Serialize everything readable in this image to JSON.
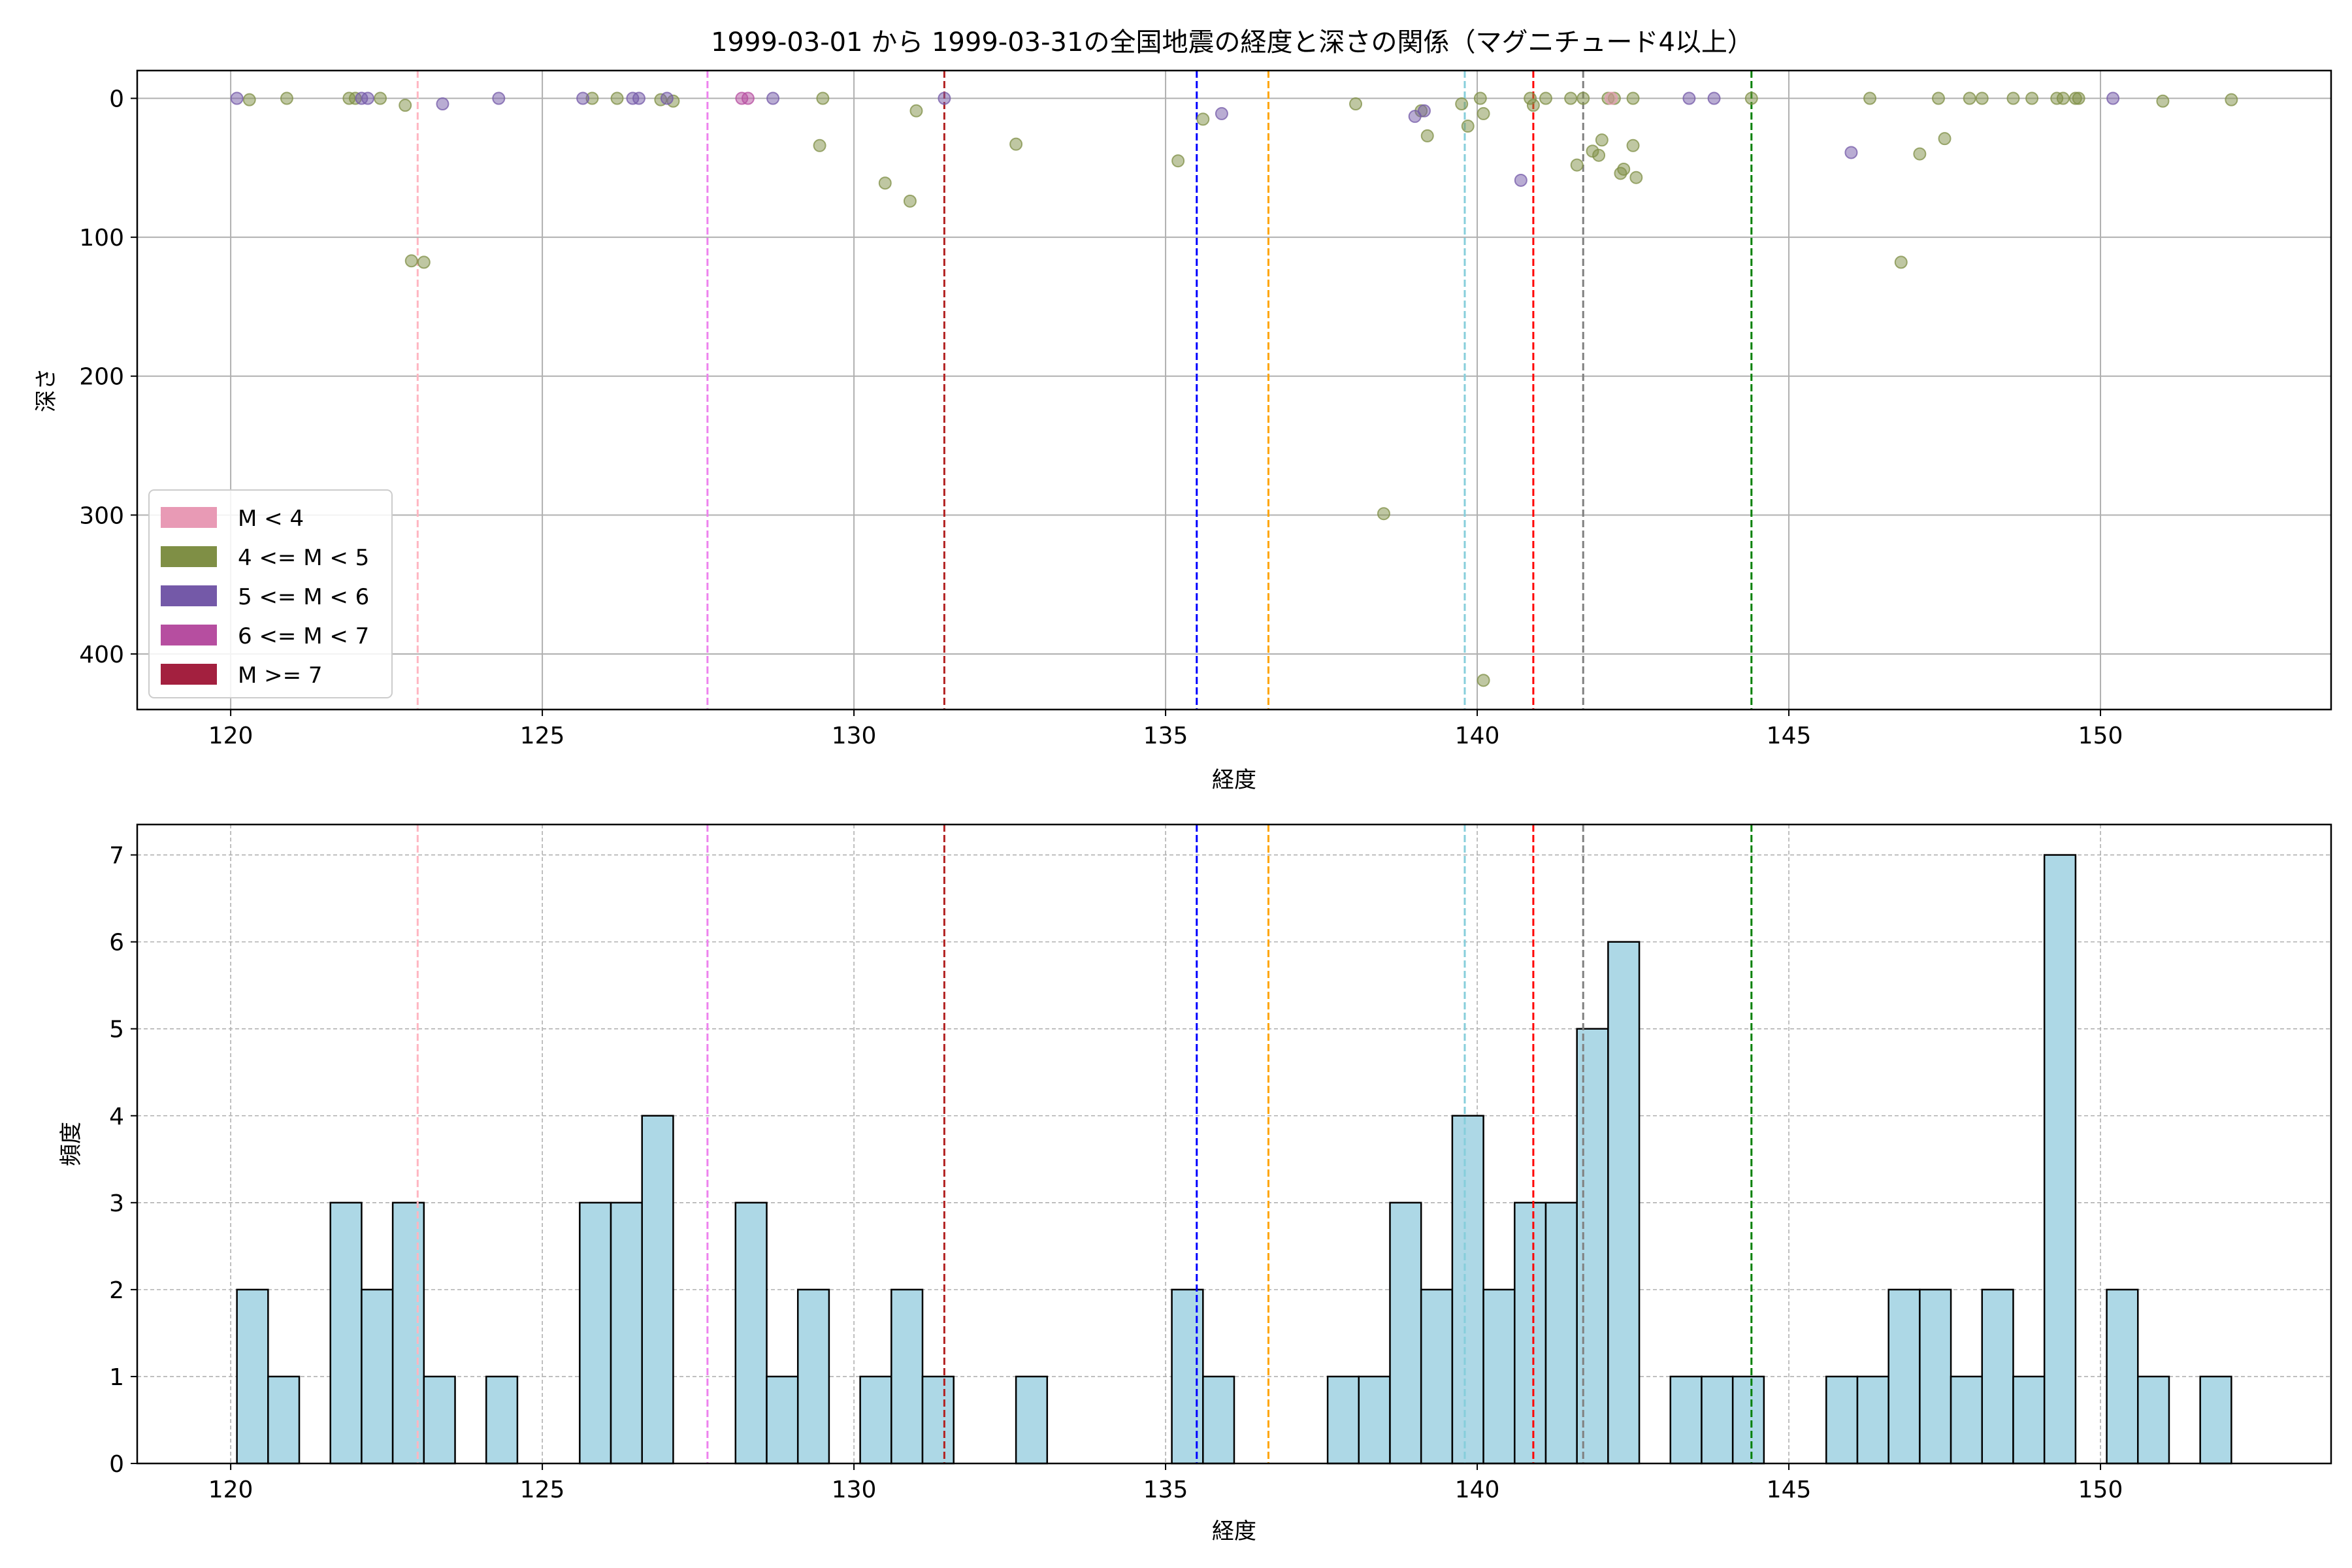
{
  "chart_data": [
    {
      "type": "scatter",
      "title": "1999-03-01 から 1999-03-31の全国地震の経度と深さの関係（マグニチュード4以上）",
      "xlabel": "経度",
      "ylabel": "深さ",
      "xlim": [
        118.5,
        153.7
      ],
      "ylim": [
        440,
        -20
      ],
      "y_inverted": true,
      "grid": true,
      "xticks": [
        120,
        125,
        130,
        135,
        140,
        145,
        150
      ],
      "yticks": [
        0,
        100,
        200,
        300,
        400
      ],
      "legend": {
        "placement": "lower-left",
        "entries": [
          {
            "label": "M < 4",
            "color": "#e89ab5"
          },
          {
            "label": "4 <= M < 5",
            "color": "#7f8f45"
          },
          {
            "label": "5 <= M < 6",
            "color": "#7459a8"
          },
          {
            "label": "6 <= M < 7",
            "color": "#b64ea0"
          },
          {
            "label": "M >= 7",
            "color": "#a3203f"
          }
        ]
      },
      "vlines": [
        {
          "x": 123.0,
          "color": "#ffb6c1"
        },
        {
          "x": 127.65,
          "color": "#ee82ee"
        },
        {
          "x": 131.45,
          "color": "#b22222"
        },
        {
          "x": 135.5,
          "color": "#0000ff"
        },
        {
          "x": 136.65,
          "color": "#ffa500"
        },
        {
          "x": 139.8,
          "color": "#87cedb"
        },
        {
          "x": 140.9,
          "color": "#ff0000"
        },
        {
          "x": 141.7,
          "color": "#808080"
        },
        {
          "x": 144.4,
          "color": "#008000"
        }
      ],
      "series": [
        {
          "class": "4 <= M < 5",
          "color": "#7f8f45",
          "points": [
            [
              120.3,
              1
            ],
            [
              120.9,
              0
            ],
            [
              121.9,
              0
            ],
            [
              122.0,
              0
            ],
            [
              122.4,
              0
            ],
            [
              122.8,
              5
            ],
            [
              122.9,
              117
            ],
            [
              123.1,
              118
            ],
            [
              125.8,
              0
            ],
            [
              126.2,
              0
            ],
            [
              126.9,
              1
            ],
            [
              127.1,
              2
            ],
            [
              129.5,
              0
            ],
            [
              129.45,
              34
            ],
            [
              130.5,
              61
            ],
            [
              130.9,
              74
            ],
            [
              131.0,
              9
            ],
            [
              132.6,
              33
            ],
            [
              135.2,
              45
            ],
            [
              135.6,
              15
            ],
            [
              138.05,
              4
            ],
            [
              138.5,
              299
            ],
            [
              139.1,
              9
            ],
            [
              139.2,
              27
            ],
            [
              139.75,
              4
            ],
            [
              139.85,
              20
            ],
            [
              140.05,
              0
            ],
            [
              140.1,
              11
            ],
            [
              140.1,
              419
            ],
            [
              140.85,
              0
            ],
            [
              140.9,
              5
            ],
            [
              141.1,
              0
            ],
            [
              141.5,
              0
            ],
            [
              141.6,
              48
            ],
            [
              141.7,
              0
            ],
            [
              141.85,
              38
            ],
            [
              141.95,
              41
            ],
            [
              142.0,
              30
            ],
            [
              142.1,
              0
            ],
            [
              142.2,
              0
            ],
            [
              142.3,
              54
            ],
            [
              142.35,
              51
            ],
            [
              142.5,
              0
            ],
            [
              142.5,
              34
            ],
            [
              142.55,
              57
            ],
            [
              144.4,
              0
            ],
            [
              146.3,
              0
            ],
            [
              146.8,
              118
            ],
            [
              147.1,
              40
            ],
            [
              147.4,
              0
            ],
            [
              147.5,
              29
            ],
            [
              147.9,
              0
            ],
            [
              148.1,
              0
            ],
            [
              148.6,
              0
            ],
            [
              148.9,
              0
            ],
            [
              149.3,
              0
            ],
            [
              149.4,
              0
            ],
            [
              149.6,
              0
            ],
            [
              149.65,
              0
            ],
            [
              151.0,
              2
            ],
            [
              152.1,
              1
            ]
          ]
        },
        {
          "class": "5 <= M < 6",
          "color": "#7459a8",
          "points": [
            [
              120.1,
              0
            ],
            [
              122.1,
              0
            ],
            [
              122.2,
              0
            ],
            [
              123.4,
              4
            ],
            [
              124.3,
              0
            ],
            [
              125.65,
              0
            ],
            [
              126.45,
              0
            ],
            [
              126.55,
              0
            ],
            [
              127.0,
              0
            ],
            [
              128.7,
              0
            ],
            [
              131.45,
              0
            ],
            [
              135.9,
              11
            ],
            [
              139.0,
              13
            ],
            [
              139.15,
              9
            ],
            [
              140.7,
              59
            ],
            [
              143.4,
              0
            ],
            [
              143.8,
              0
            ],
            [
              146.0,
              39
            ],
            [
              150.2,
              0
            ]
          ]
        },
        {
          "class": "6 <= M < 7",
          "color": "#b64ea0",
          "points": [
            [
              128.2,
              0
            ],
            [
              128.3,
              0
            ]
          ]
        },
        {
          "class": "M < 4",
          "color": "#e89ab5",
          "points": [
            [
              142.15,
              0
            ]
          ]
        }
      ]
    },
    {
      "type": "bar",
      "title": "",
      "xlabel": "経度",
      "ylabel": "頻度",
      "xlim": [
        118.5,
        153.7
      ],
      "ylim": [
        0,
        7.35
      ],
      "grid": true,
      "xticks": [
        120,
        125,
        130,
        135,
        140,
        145,
        150
      ],
      "yticks": [
        0,
        1,
        2,
        3,
        4,
        5,
        6,
        7
      ],
      "bar_color": "#add8e6",
      "bin_width": 0.5,
      "bins": [
        [
          120.1,
          2
        ],
        [
          120.6,
          1
        ],
        [
          121.6,
          3
        ],
        [
          122.1,
          2
        ],
        [
          122.6,
          3
        ],
        [
          123.1,
          1
        ],
        [
          124.1,
          1
        ],
        [
          125.6,
          3
        ],
        [
          126.1,
          3
        ],
        [
          126.6,
          4
        ],
        [
          128.1,
          3
        ],
        [
          128.6,
          1
        ],
        [
          129.1,
          2
        ],
        [
          130.1,
          1
        ],
        [
          130.6,
          2
        ],
        [
          131.1,
          1
        ],
        [
          132.6,
          1
        ],
        [
          135.1,
          2
        ],
        [
          135.6,
          1
        ],
        [
          137.6,
          1
        ],
        [
          138.1,
          1
        ],
        [
          138.6,
          3
        ],
        [
          139.1,
          2
        ],
        [
          139.6,
          4
        ],
        [
          140.1,
          2
        ],
        [
          140.6,
          3
        ],
        [
          141.1,
          3
        ],
        [
          141.6,
          5
        ],
        [
          142.1,
          6
        ],
        [
          143.1,
          1
        ],
        [
          143.6,
          1
        ],
        [
          144.1,
          1
        ],
        [
          145.6,
          1
        ],
        [
          146.1,
          1
        ],
        [
          146.6,
          2
        ],
        [
          147.1,
          2
        ],
        [
          147.6,
          1
        ],
        [
          148.1,
          2
        ],
        [
          148.6,
          1
        ],
        [
          149.1,
          7
        ],
        [
          150.1,
          2
        ],
        [
          150.6,
          1
        ],
        [
          151.6,
          1
        ]
      ],
      "vlines": [
        {
          "x": 123.0,
          "color": "#ffb6c1"
        },
        {
          "x": 127.65,
          "color": "#ee82ee"
        },
        {
          "x": 131.45,
          "color": "#b22222"
        },
        {
          "x": 135.5,
          "color": "#0000ff"
        },
        {
          "x": 136.65,
          "color": "#ffa500"
        },
        {
          "x": 139.8,
          "color": "#87cedb"
        },
        {
          "x": 140.9,
          "color": "#ff0000"
        },
        {
          "x": 141.7,
          "color": "#808080"
        },
        {
          "x": 144.4,
          "color": "#008000"
        }
      ]
    }
  ]
}
